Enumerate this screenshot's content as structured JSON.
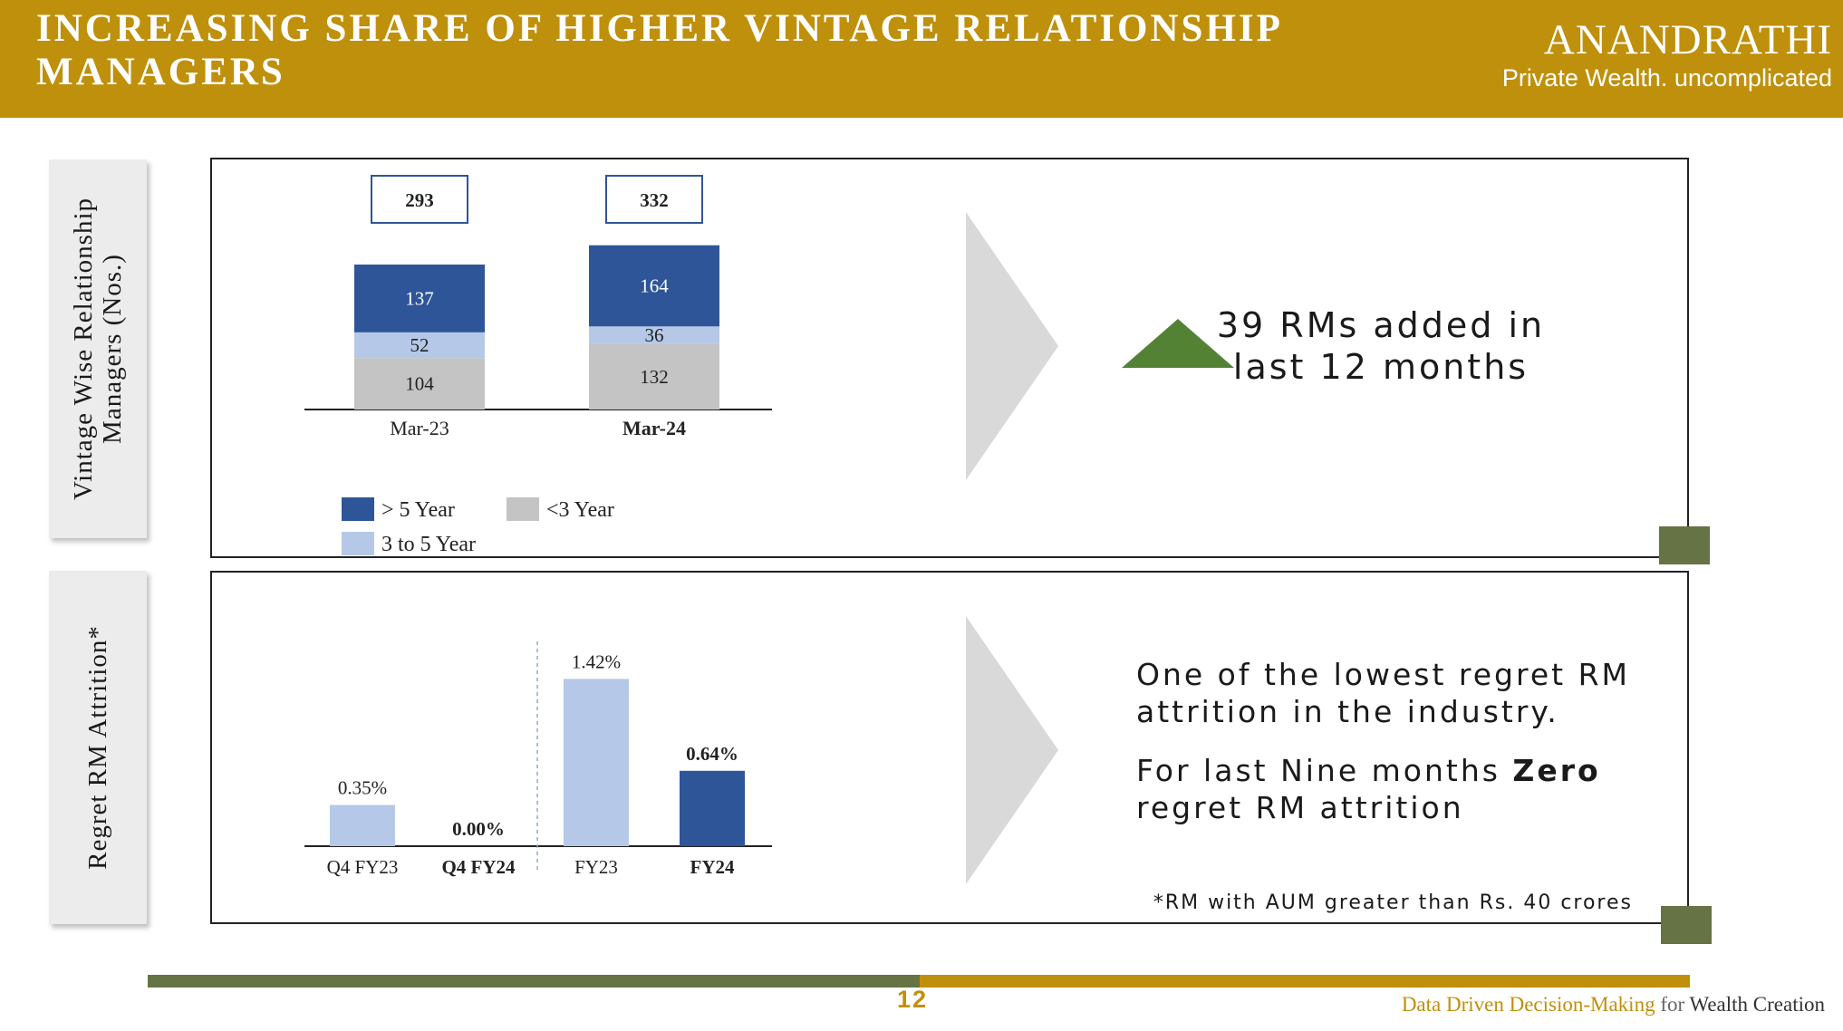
{
  "header": {
    "title": "Increasing Share of Higher Vintage Relationship Managers",
    "brand_name": "ANANDRATHI",
    "brand_tagline": "Private Wealth. uncomplicated"
  },
  "colors": {
    "gold": "#bf900b",
    "olive": "#667345",
    "dark_blue": "#2e5597",
    "light_blue": "#b5c8e8",
    "gray": "#c4c4c4",
    "arrow_gray": "#d9d9d9",
    "triangle_green": "#548235"
  },
  "top_section": {
    "side_label_line1": "Vintage Wise Relationship",
    "side_label_line2": "Managers (Nos.)",
    "note_line1": "39 RMs added in",
    "note_line2": "last 12 months"
  },
  "bottom_section": {
    "side_label": "Regret RM Attrition*",
    "note_line1": "One of the lowest regret RM",
    "note_line2": "attrition in the industry.",
    "note2_part1": "For last Nine months ",
    "note2_bold": "Zero",
    "note2_line2": "regret RM attrition",
    "footnote": "*RM with AUM greater than Rs. 40 crores"
  },
  "footer": {
    "page_number": "12",
    "tagline_part1": "Data Driven Decision-Making",
    "tagline_part2": " for ",
    "tagline_part3": "Wealth Creation"
  },
  "chart_data": [
    {
      "type": "bar",
      "stacked": true,
      "categories": [
        "Mar-23",
        "Mar-24"
      ],
      "bold_categories": [
        "Mar-24"
      ],
      "series": [
        {
          "name": "<3 Year",
          "color": "#c4c4c4",
          "values": [
            104,
            132
          ]
        },
        {
          "name": "3 to 5 Year",
          "color": "#b5c8e8",
          "values": [
            52,
            36
          ]
        },
        {
          "name": "> 5 Year",
          "color": "#2e5597",
          "values": [
            137,
            164
          ]
        }
      ],
      "totals": [
        293,
        332
      ],
      "legend_order": [
        "> 5 Year",
        "<3 Year",
        "3 to 5 Year"
      ],
      "legend_position": "bottom-left",
      "grid": false
    },
    {
      "type": "bar",
      "categories": [
        "Q4 FY23",
        "Q4 FY24",
        "FY23",
        "FY24"
      ],
      "bold_categories": [
        "Q4 FY24",
        "FY24"
      ],
      "values": [
        0.35,
        0.0,
        1.42,
        0.64
      ],
      "labels": [
        "0.35%",
        "0.00%",
        "1.42%",
        "0.64%"
      ],
      "colors": [
        "#b5c8e8",
        "#b5c8e8",
        "#b5c8e8",
        "#2e5597"
      ],
      "unit": "%",
      "separator_after_index": 1,
      "grid": false
    }
  ]
}
